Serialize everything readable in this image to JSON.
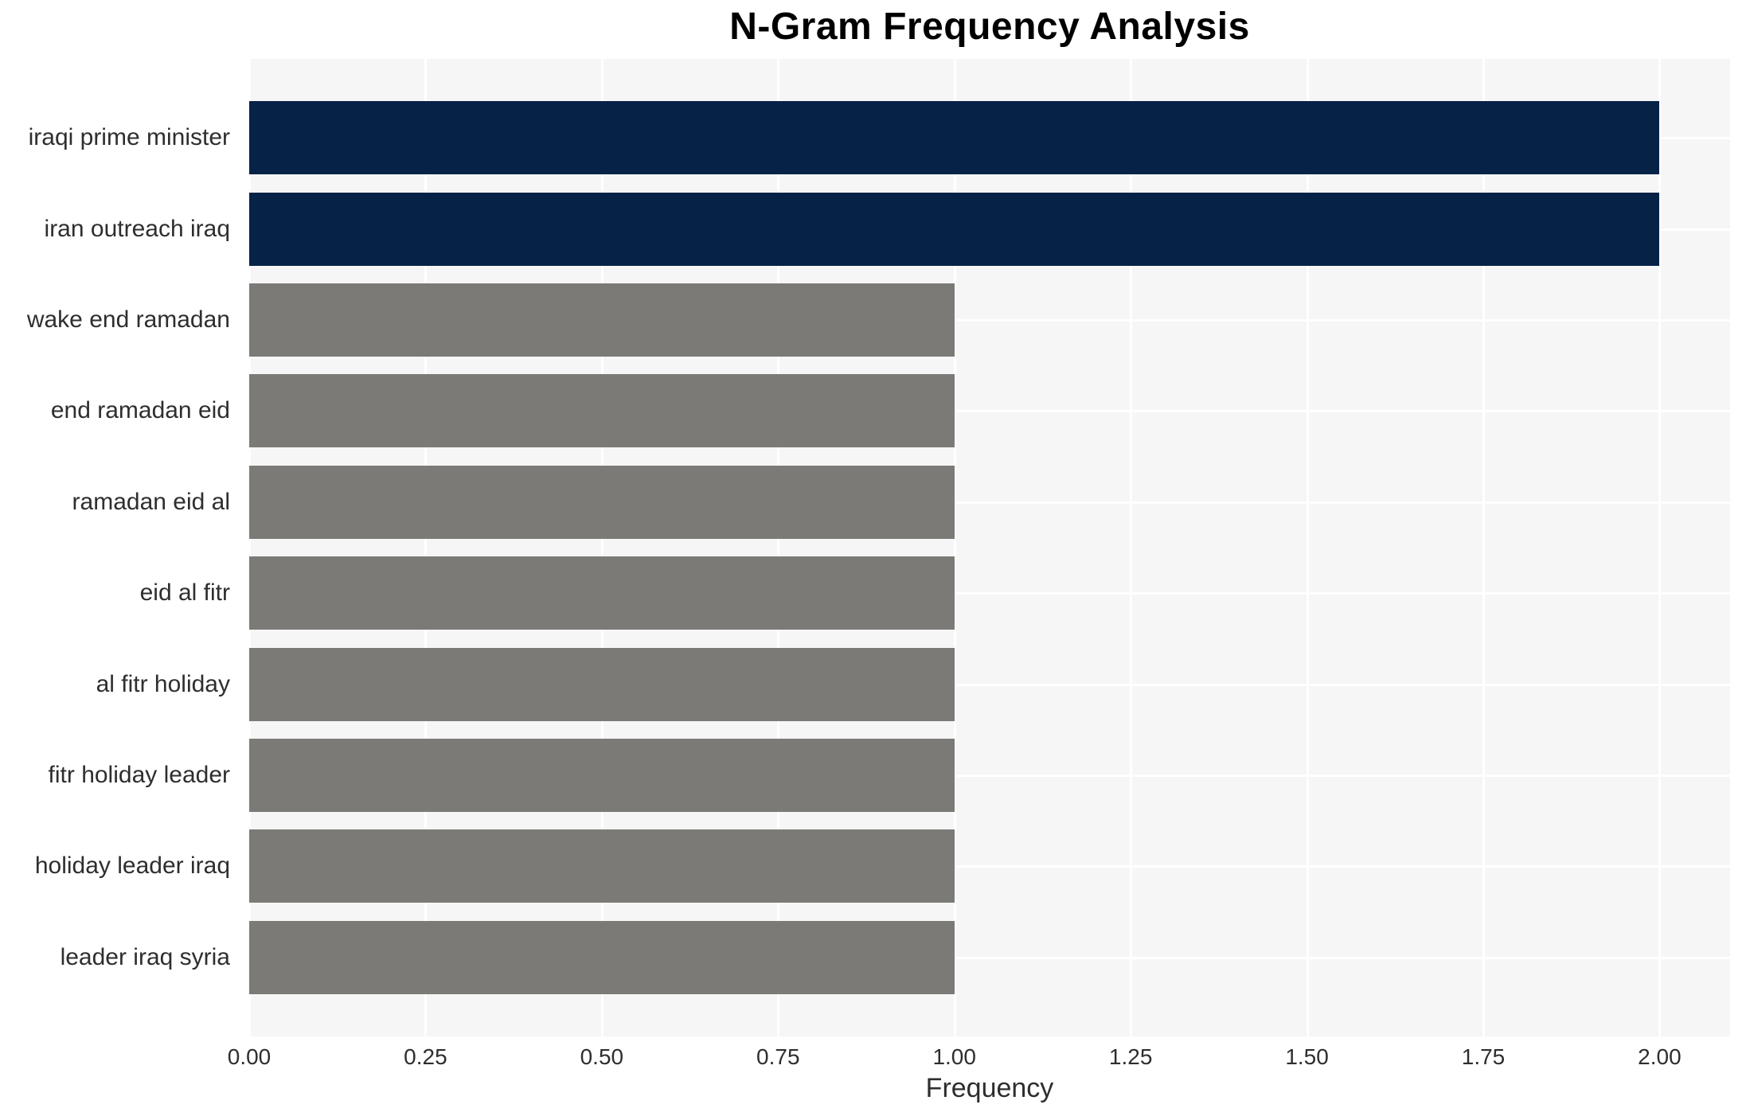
{
  "chart_data": {
    "type": "bar",
    "orientation": "horizontal",
    "title": "N-Gram Frequency Analysis",
    "xlabel": "Frequency",
    "ylabel": "",
    "categories": [
      "iraqi prime minister",
      "iran outreach iraq",
      "wake end ramadan",
      "end ramadan eid",
      "ramadan eid al",
      "eid al fitr",
      "al fitr holiday",
      "fitr holiday leader",
      "holiday leader iraq",
      "leader iraq syria"
    ],
    "values": [
      2,
      2,
      1,
      1,
      1,
      1,
      1,
      1,
      1,
      1
    ],
    "bar_colors": [
      "#062247",
      "#062247",
      "#7b7a76",
      "#7b7a76",
      "#7b7a76",
      "#7b7a76",
      "#7b7a76",
      "#7b7a76",
      "#7b7a76",
      "#7b7a76"
    ],
    "xlim": [
      0,
      2.1
    ],
    "xticks": [
      "0.00",
      "0.25",
      "0.50",
      "0.75",
      "1.00",
      "1.25",
      "1.50",
      "1.75",
      "2.00"
    ],
    "xtick_values": [
      0,
      0.25,
      0.5,
      0.75,
      1.0,
      1.25,
      1.5,
      1.75,
      2.0
    ],
    "grid": true,
    "legend": "none",
    "colors": {
      "highlight_bar": "#062247",
      "default_bar": "#7b7a76",
      "plot_background": "#f6f6f6",
      "gridline": "#ffffff",
      "tick_text": "#2e2e2e",
      "title_text": "#000000"
    }
  }
}
